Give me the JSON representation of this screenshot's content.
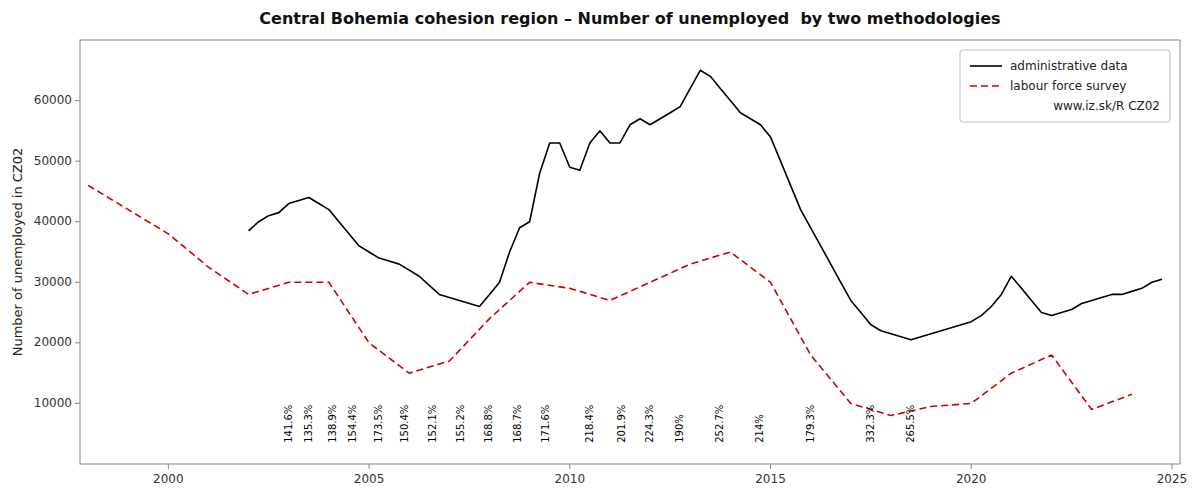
{
  "chart_data": {
    "type": "line",
    "title": "Central Bohemia cohesion region – Number of unemployed  by two methodologies",
    "y_label": "Number of unemployed in CZ02",
    "source": "www.iz.sk/R CZ02",
    "xlim": [
      1997.8,
      2025.2
    ],
    "xticks": [
      2000,
      2005,
      2010,
      2015,
      2020,
      2025
    ],
    "ylim": [
      0,
      70000
    ],
    "yticks": [
      10000,
      20000,
      30000,
      40000,
      50000,
      60000
    ],
    "grid": false,
    "legend": "upper right",
    "series": [
      {
        "name": "administrative data",
        "color": "#000000",
        "line_style": "solid",
        "x": [
          2002.0,
          2002.25,
          2002.5,
          2002.75,
          2003.0,
          2003.25,
          2003.5,
          2003.75,
          2004.0,
          2004.25,
          2004.5,
          2004.75,
          2005.0,
          2005.25,
          2005.5,
          2005.75,
          2006.0,
          2006.25,
          2006.5,
          2006.75,
          2007.0,
          2007.25,
          2007.5,
          2007.75,
          2008.0,
          2008.25,
          2008.5,
          2008.75,
          2009.0,
          2009.25,
          2009.5,
          2009.75,
          2010.0,
          2010.25,
          2010.5,
          2010.75,
          2011.0,
          2011.25,
          2011.5,
          2011.75,
          2012.0,
          2012.25,
          2012.5,
          2012.75,
          2013.0,
          2013.25,
          2013.5,
          2013.75,
          2014.0,
          2014.25,
          2014.5,
          2014.75,
          2015.0,
          2015.25,
          2015.5,
          2015.75,
          2016.0,
          2016.25,
          2016.5,
          2016.75,
          2017.0,
          2017.25,
          2017.5,
          2017.75,
          2018.0,
          2018.25,
          2018.5,
          2018.75,
          2019.0,
          2019.25,
          2019.5,
          2019.75,
          2020.0,
          2020.25,
          2020.5,
          2020.75,
          2021.0,
          2021.25,
          2021.5,
          2021.75,
          2022.0,
          2022.25,
          2022.5,
          2022.75,
          2023.0,
          2023.25,
          2023.5,
          2023.75,
          2024.0,
          2024.25,
          2024.5,
          2024.75
        ],
        "values": [
          38500,
          40000,
          41000,
          41500,
          43000,
          43500,
          44000,
          43000,
          42000,
          40000,
          38000,
          36000,
          35000,
          34000,
          33500,
          33000,
          32000,
          31000,
          29500,
          28000,
          27500,
          27000,
          26500,
          26000,
          28000,
          30000,
          35000,
          39000,
          40000,
          48000,
          53000,
          53000,
          49000,
          48500,
          53000,
          55000,
          53000,
          53000,
          56000,
          57000,
          56000,
          57000,
          58000,
          59000,
          62000,
          65000,
          64000,
          62000,
          60000,
          58000,
          57000,
          56000,
          54000,
          50000,
          46000,
          42000,
          39000,
          36000,
          33000,
          30000,
          27000,
          25000,
          23000,
          22000,
          21500,
          21000,
          20500,
          21000,
          21500,
          22000,
          22500,
          23000,
          23500,
          24500,
          26000,
          28000,
          31000,
          29000,
          27000,
          25000,
          24500,
          25000,
          25500,
          26500,
          27000,
          27500,
          28000,
          28000,
          28500,
          29000,
          30000,
          30500
        ]
      },
      {
        "name": "labour force survey",
        "color": "#cc0000",
        "line_style": "dashed",
        "x": [
          1998.0,
          1999.0,
          2000.0,
          2001.0,
          2002.0,
          2003.0,
          2004.0,
          2005.0,
          2006.0,
          2007.0,
          2008.0,
          2009.0,
          2010.0,
          2011.0,
          2012.0,
          2013.0,
          2014.0,
          2015.0,
          2016.0,
          2017.0,
          2018.0,
          2019.0,
          2020.0,
          2021.0,
          2022.0,
          2023.0,
          2024.0
        ],
        "values": [
          46000,
          42000,
          38000,
          32500,
          28000,
          30000,
          30000,
          20000,
          15000,
          17000,
          24000,
          30000,
          29000,
          27000,
          30000,
          33000,
          35000,
          30000,
          18000,
          10000,
          8000,
          9500,
          10000,
          15000,
          18000,
          9000,
          11500
        ]
      }
    ],
    "annotations": [
      {
        "x": 2003.0,
        "y": 3500,
        "text": "141.6%",
        "color": "#000000"
      },
      {
        "x": 2003.5,
        "y": 3500,
        "text": "135.3%",
        "color": "#000000"
      },
      {
        "x": 2004.1,
        "y": 3500,
        "text": "138.9%",
        "color": "#000000"
      },
      {
        "x": 2004.6,
        "y": 3500,
        "text": "154.4%",
        "color": "#000000"
      },
      {
        "x": 2005.25,
        "y": 3500,
        "text": "173.5%",
        "color": "#000000"
      },
      {
        "x": 2005.9,
        "y": 3500,
        "text": "150.4%",
        "color": "#000000"
      },
      {
        "x": 2006.6,
        "y": 3500,
        "text": "152.1%",
        "color": "#000000"
      },
      {
        "x": 2007.3,
        "y": 3500,
        "text": "155.2%",
        "color": "#000000"
      },
      {
        "x": 2008.0,
        "y": 3500,
        "text": "168.8%",
        "color": "#000000"
      },
      {
        "x": 2008.7,
        "y": 3500,
        "text": "168.7%",
        "color": "#000000"
      },
      {
        "x": 2009.4,
        "y": 3500,
        "text": "171.6%",
        "color": "#000000"
      },
      {
        "x": 2010.5,
        "y": 3500,
        "text": "218.4%",
        "color": "#000000"
      },
      {
        "x": 2011.3,
        "y": 3500,
        "text": "201.9%",
        "color": "#000000"
      },
      {
        "x": 2012.0,
        "y": 3500,
        "text": "224.3%",
        "color": "#000000"
      },
      {
        "x": 2012.75,
        "y": 3500,
        "text": "190%",
        "color": "#000000"
      },
      {
        "x": 2013.75,
        "y": 3500,
        "text": "252.7%",
        "color": "#000000"
      },
      {
        "x": 2014.75,
        "y": 3500,
        "text": "214%",
        "color": "#000000"
      },
      {
        "x": 2016.0,
        "y": 3500,
        "text": "179.3%",
        "color": "#000000"
      },
      {
        "x": 2017.5,
        "y": 3500,
        "text": "332.3%",
        "color": "#000000"
      },
      {
        "x": 2018.5,
        "y": 3500,
        "text": "265.5%",
        "color": "#000000"
      }
    ]
  }
}
